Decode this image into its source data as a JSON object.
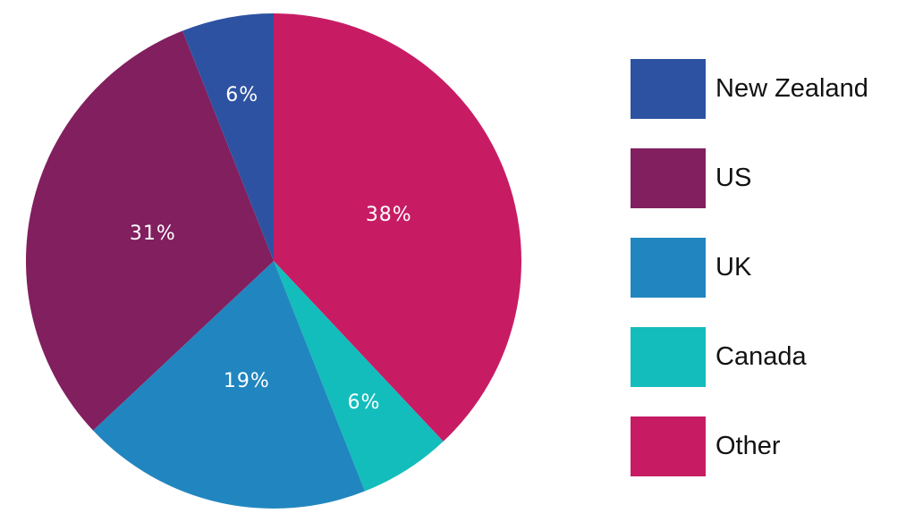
{
  "chart_data": {
    "type": "pie",
    "title": "",
    "slices": [
      {
        "label": "Other",
        "value": 38,
        "display": "38%",
        "color": "#C71C64"
      },
      {
        "label": "Canada",
        "value": 6,
        "display": "6%",
        "color": "#13BDBC"
      },
      {
        "label": "UK",
        "value": 19,
        "display": "19%",
        "color": "#2186BF"
      },
      {
        "label": "US",
        "value": 31,
        "display": "31%",
        "color": "#811F5F"
      },
      {
        "label": "New Zealand",
        "value": 6,
        "display": "6%",
        "color": "#2E52A2"
      }
    ],
    "start": "12 o'clock",
    "direction": "clockwise",
    "legend_position": "right",
    "legend_order": [
      "New Zealand",
      "US",
      "UK",
      "Canada",
      "Other"
    ]
  }
}
